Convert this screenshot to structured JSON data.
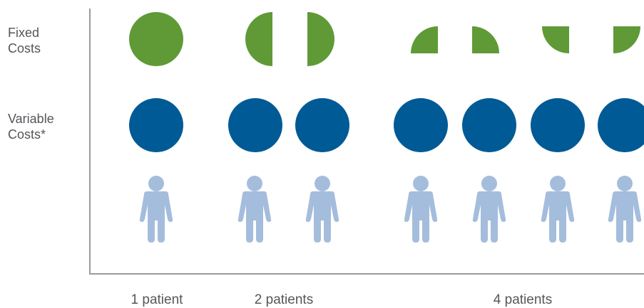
{
  "labels": {
    "fixed_costs": "Fixed\nCosts",
    "variable_costs": "Variable\nCosts*"
  },
  "groups": [
    {
      "label": "1 patient",
      "patients": 1,
      "fixed_share": "1"
    },
    {
      "label": "2 patients",
      "patients": 2,
      "fixed_share": "1/2"
    },
    {
      "label": "4 patients",
      "patients": 4,
      "fixed_share": "1/4"
    }
  ],
  "colors": {
    "fixed": "#5f9a36",
    "variable": "#005a96",
    "patient": "#a5bddc",
    "text": "#55565a",
    "axis": "#9a9a9a"
  },
  "icons": {
    "fixed_cost": "circle-slice",
    "variable_cost": "circle",
    "patient": "person-icon"
  }
}
